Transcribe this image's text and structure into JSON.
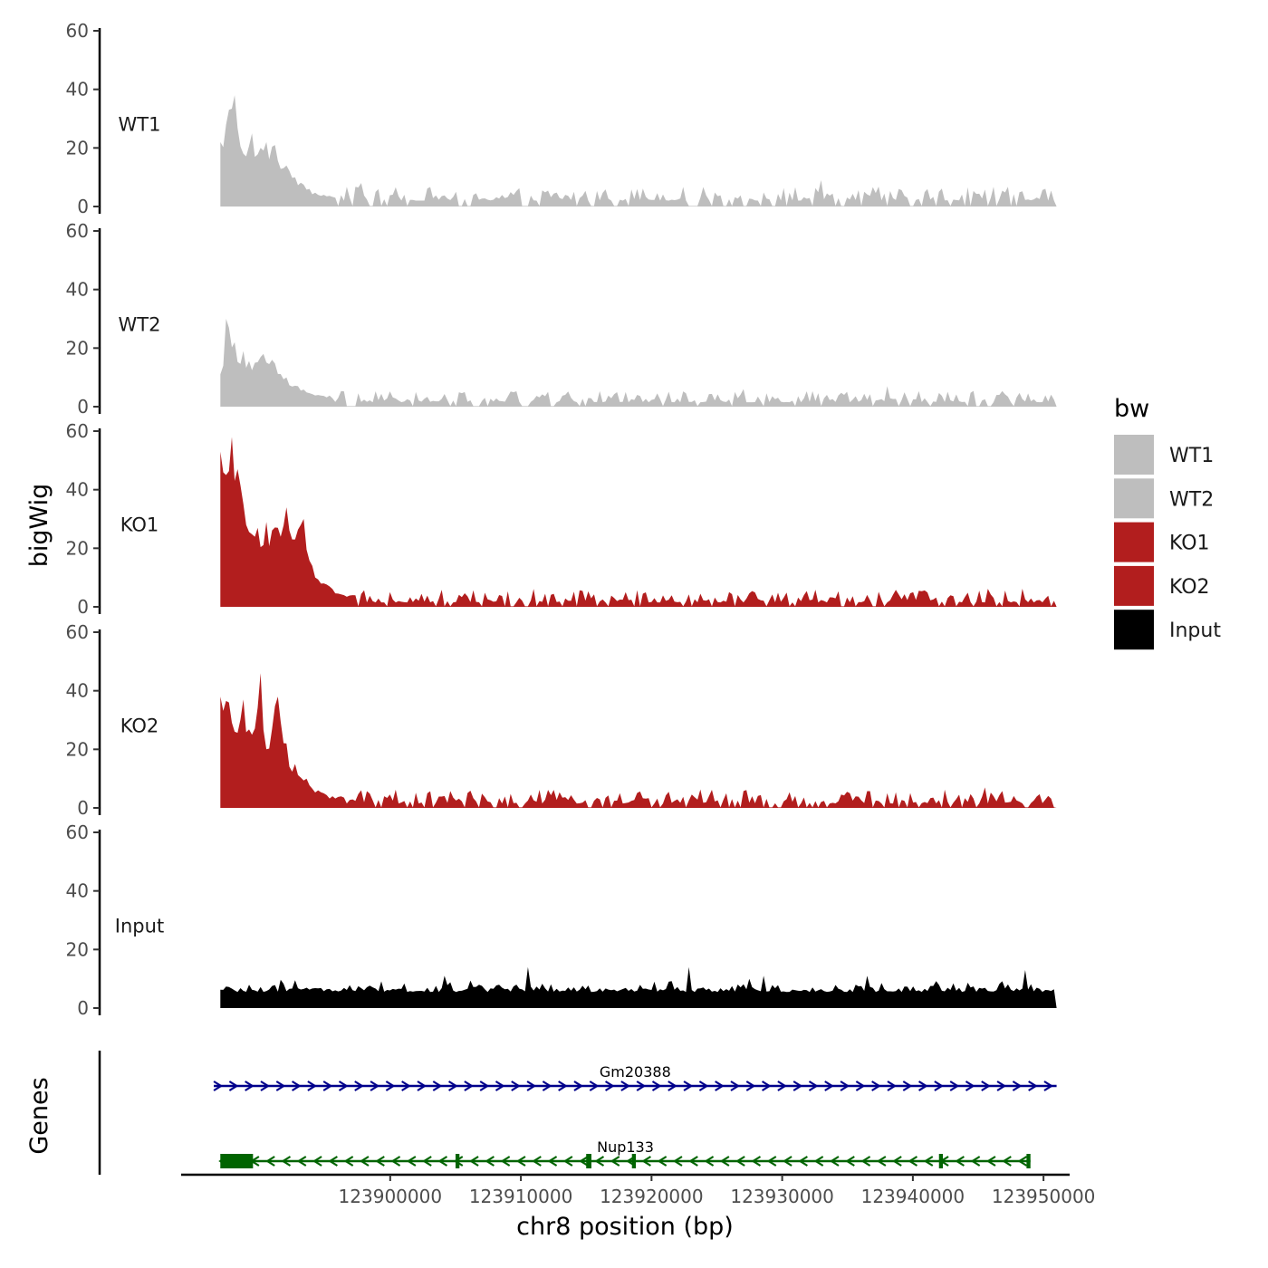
{
  "chart_data": {
    "type": "area",
    "title": "",
    "xlabel": "chr8 position (bp)",
    "ylabel": "bigWig",
    "genes_label": "Genes",
    "xlim": [
      123884000,
      123952000
    ],
    "data_range": [
      123887000,
      123951000
    ],
    "x_ticks": [
      123900000,
      123910000,
      123920000,
      123930000,
      123940000,
      123950000
    ],
    "x_tick_labels": [
      "123900000",
      "123910000",
      "123920000",
      "123930000",
      "123940000",
      "123950000"
    ],
    "ylim": [
      0,
      60
    ],
    "y_ticks": [
      0,
      20,
      40,
      60
    ],
    "y_tick_labels": [
      "0",
      "20",
      "40",
      "60"
    ],
    "legend": {
      "title": "bw",
      "placement": "right",
      "entries": [
        {
          "label": "WT1",
          "color": "#bebebe"
        },
        {
          "label": "WT2",
          "color": "#bebebe"
        },
        {
          "label": "KO1",
          "color": "#b21e1e"
        },
        {
          "label": "KO2",
          "color": "#b21e1e"
        },
        {
          "label": "Input",
          "color": "#000000"
        }
      ]
    },
    "tracks": [
      {
        "name": "WT1",
        "color": "#bebebe",
        "peaks": [
          {
            "x": 123887000,
            "y": 22
          },
          {
            "x": 123887600,
            "y": 33
          },
          {
            "x": 123888200,
            "y": 38
          },
          {
            "x": 123888800,
            "y": 18
          },
          {
            "x": 123889400,
            "y": 25
          },
          {
            "x": 123890000,
            "y": 20
          },
          {
            "x": 123890600,
            "y": 22
          },
          {
            "x": 123891200,
            "y": 21
          },
          {
            "x": 123892000,
            "y": 14
          },
          {
            "x": 123892800,
            "y": 10
          },
          {
            "x": 123893800,
            "y": 6
          },
          {
            "x": 123895000,
            "y": 4
          }
        ],
        "tail": {
          "start": 123896000,
          "baseline": 2,
          "amp": 3,
          "spikes": [
            {
              "x": 123897700,
              "y": 8
            },
            {
              "x": 123919000,
              "y": 6
            },
            {
              "x": 123933000,
              "y": 9
            },
            {
              "x": 123939000,
              "y": 6
            },
            {
              "x": 123942000,
              "y": 5
            }
          ]
        }
      },
      {
        "name": "WT2",
        "color": "#bebebe",
        "peaks": [
          {
            "x": 123887000,
            "y": 11
          },
          {
            "x": 123887500,
            "y": 30
          },
          {
            "x": 123888000,
            "y": 22
          },
          {
            "x": 123888800,
            "y": 19
          },
          {
            "x": 123889600,
            "y": 15
          },
          {
            "x": 123890200,
            "y": 18
          },
          {
            "x": 123891000,
            "y": 16
          },
          {
            "x": 123892000,
            "y": 10
          },
          {
            "x": 123893000,
            "y": 7
          },
          {
            "x": 123894500,
            "y": 4
          }
        ],
        "tail": {
          "start": 123895500,
          "baseline": 1.5,
          "amp": 2.5,
          "spikes": [
            {
              "x": 123927000,
              "y": 6
            },
            {
              "x": 123938000,
              "y": 7
            }
          ]
        }
      },
      {
        "name": "KO1",
        "color": "#b21e1e",
        "peaks": [
          {
            "x": 123887000,
            "y": 53
          },
          {
            "x": 123887400,
            "y": 45
          },
          {
            "x": 123887800,
            "y": 58
          },
          {
            "x": 123888400,
            "y": 47
          },
          {
            "x": 123889000,
            "y": 28
          },
          {
            "x": 123889800,
            "y": 27
          },
          {
            "x": 123890600,
            "y": 29
          },
          {
            "x": 123891300,
            "y": 27
          },
          {
            "x": 123892000,
            "y": 34
          },
          {
            "x": 123892600,
            "y": 23
          },
          {
            "x": 123893300,
            "y": 30
          },
          {
            "x": 123894000,
            "y": 14
          },
          {
            "x": 123895000,
            "y": 8
          },
          {
            "x": 123896500,
            "y": 4
          }
        ],
        "tail": {
          "start": 123897500,
          "baseline": 1.5,
          "amp": 3,
          "spikes": [
            {
              "x": 123900000,
              "y": 5
            },
            {
              "x": 123918000,
              "y": 5
            },
            {
              "x": 123926000,
              "y": 5
            }
          ]
        }
      },
      {
        "name": "KO2",
        "color": "#b21e1e",
        "peaks": [
          {
            "x": 123887000,
            "y": 38
          },
          {
            "x": 123887600,
            "y": 36
          },
          {
            "x": 123888200,
            "y": 26
          },
          {
            "x": 123888800,
            "y": 37
          },
          {
            "x": 123889400,
            "y": 25
          },
          {
            "x": 123890000,
            "y": 46
          },
          {
            "x": 123890600,
            "y": 20
          },
          {
            "x": 123891300,
            "y": 38
          },
          {
            "x": 123892000,
            "y": 22
          },
          {
            "x": 123892700,
            "y": 15
          },
          {
            "x": 123893500,
            "y": 10
          },
          {
            "x": 123894500,
            "y": 6
          },
          {
            "x": 123895500,
            "y": 4
          }
        ],
        "tail": {
          "start": 123896500,
          "baseline": 1.5,
          "amp": 3,
          "spikes": [
            {
              "x": 123945500,
              "y": 7
            },
            {
              "x": 123938000,
              "y": 5
            }
          ]
        }
      },
      {
        "name": "Input",
        "color": "#000000",
        "peaks": [],
        "tail": {
          "start": 123887000,
          "baseline": 4,
          "amp": 5,
          "spikes": [
            {
              "x": 123910500,
              "y": 14
            },
            {
              "x": 123922800,
              "y": 14
            },
            {
              "x": 123948600,
              "y": 13
            },
            {
              "x": 123904200,
              "y": 11
            },
            {
              "x": 123928500,
              "y": 11
            },
            {
              "x": 123936500,
              "y": 11
            }
          ]
        }
      }
    ],
    "genes": [
      {
        "name": "Gm20388",
        "color": "#00008b",
        "start": 123886500,
        "end": 123951000,
        "strand": "+",
        "exons": []
      },
      {
        "name": "Nup133",
        "color": "#006400",
        "start": 123887000,
        "end": 123949000,
        "strand": "-",
        "exons": [
          {
            "start": 123887000,
            "end": 123889500
          },
          {
            "start": 123905000,
            "end": 123905300
          },
          {
            "start": 123915000,
            "end": 123915400
          },
          {
            "start": 123918500,
            "end": 123918800
          },
          {
            "start": 123942000,
            "end": 123942300
          },
          {
            "start": 123948700,
            "end": 123949000
          }
        ]
      }
    ]
  }
}
